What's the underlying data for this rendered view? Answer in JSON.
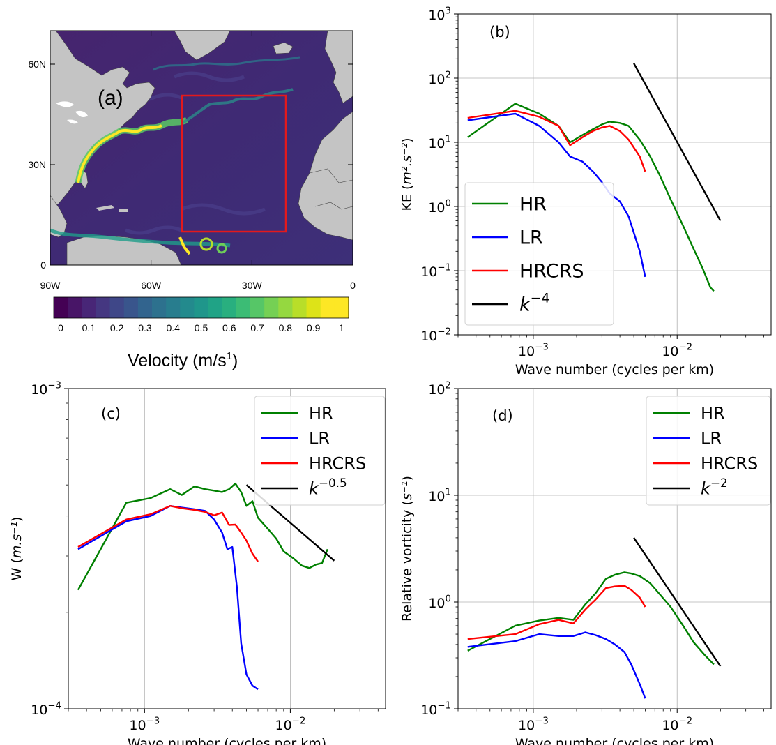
{
  "chart_data": [
    {
      "panel": "(a)",
      "type": "heatmap",
      "lat_ticks": [
        "60N",
        "30N",
        "0"
      ],
      "lon_ticks": [
        "90W",
        "60W",
        "30W",
        "0"
      ],
      "colorbar": {
        "ticks": [
          "0",
          "0.1",
          "0.2",
          "0.3",
          "0.4",
          "0.5",
          "0.6",
          "0.7",
          "0.8",
          "0.9",
          "1"
        ],
        "label_main": "Velocity (m/s",
        "label_sup": "1",
        "label_end": ")",
        "range": [
          0,
          1.05
        ]
      },
      "box_region": {
        "lon": [
          -50,
          -20
        ],
        "lat": [
          10,
          50
        ]
      },
      "colors": {
        "box": "#e3191c",
        "land": "#c4c4c4",
        "ocean_low": "#3e1f6b"
      }
    },
    {
      "panel": "(b)",
      "type": "line",
      "xlabel": "Wave number (cycles per km)",
      "ylabel_main": "KE (",
      "ylabel_tex": "m².s⁻²",
      "ylabel_end": ")",
      "xscale": "log",
      "yscale": "log",
      "xlim": [
        0.0003,
        0.045
      ],
      "ylim": [
        0.01,
        1000
      ],
      "xticks": [
        {
          "v": 0.001,
          "base": "10",
          "exp": "−3"
        },
        {
          "v": 0.01,
          "base": "10",
          "exp": "−2"
        }
      ],
      "yticks": [
        {
          "v": 0.01,
          "base": "10",
          "exp": "−2"
        },
        {
          "v": 0.1,
          "base": "10",
          "exp": "−1"
        },
        {
          "v": 1,
          "base": "10",
          "exp": "0"
        },
        {
          "v": 10,
          "base": "10",
          "exp": "1"
        },
        {
          "v": 100,
          "base": "10",
          "exp": "2"
        },
        {
          "v": 1000,
          "base": "10",
          "exp": "3"
        }
      ],
      "grid": true,
      "legend_position": "bottom-left",
      "series": [
        {
          "name": "HR",
          "color": "#008000",
          "x": [
            0.00035,
            0.00075,
            0.0011,
            0.0015,
            0.0018,
            0.0022,
            0.0026,
            0.003,
            0.0034,
            0.004,
            0.0046,
            0.0055,
            0.0065,
            0.0075,
            0.009,
            0.011,
            0.013,
            0.015,
            0.017,
            0.018
          ],
          "y": [
            12,
            40,
            28,
            18,
            10,
            13,
            16,
            19,
            21,
            20,
            18,
            11,
            6,
            3.2,
            1.3,
            0.5,
            0.22,
            0.11,
            0.055,
            0.048
          ]
        },
        {
          "name": "LR",
          "color": "#0000ff",
          "x": [
            0.00035,
            0.00075,
            0.0011,
            0.0015,
            0.0018,
            0.0022,
            0.0026,
            0.003,
            0.0034,
            0.004,
            0.0046,
            0.0055,
            0.006
          ],
          "y": [
            22,
            28,
            18,
            10,
            6,
            5,
            3.5,
            2.4,
            1.6,
            1.2,
            0.7,
            0.2,
            0.08
          ]
        },
        {
          "name": "HRCRS",
          "color": "#ff0000",
          "x": [
            0.00035,
            0.00075,
            0.0011,
            0.0015,
            0.0018,
            0.0022,
            0.0026,
            0.003,
            0.0034,
            0.004,
            0.0046,
            0.0055,
            0.006
          ],
          "y": [
            24,
            31,
            25,
            18,
            9,
            12,
            15,
            17,
            18,
            15,
            11,
            6,
            3.5
          ]
        },
        {
          "name_base": "k",
          "name_exp": "−4",
          "color": "#000000",
          "x": [
            0.005,
            0.02
          ],
          "y": [
            170,
            0.6
          ]
        }
      ],
      "annotation": "(b)"
    },
    {
      "panel": "(c)",
      "type": "line",
      "xlabel": "Wave number (cycles per km)",
      "ylabel_main": "W (",
      "ylabel_tex": "m.s⁻¹",
      "ylabel_end": ")",
      "xscale": "log",
      "yscale": "log",
      "xlim": [
        0.0003,
        0.045
      ],
      "ylim": [
        0.0001,
        0.001
      ],
      "xticks": [
        {
          "v": 0.001,
          "base": "10",
          "exp": "−3"
        },
        {
          "v": 0.01,
          "base": "10",
          "exp": "−2"
        }
      ],
      "yticks": [
        {
          "v": 0.0001,
          "base": "10",
          "exp": "−4"
        },
        {
          "v": 0.001,
          "base": "10",
          "exp": "−3"
        }
      ],
      "grid": true,
      "legend_position": "top-right",
      "series": [
        {
          "name": "HR",
          "color": "#008000",
          "x": [
            0.00035,
            0.00075,
            0.0011,
            0.0015,
            0.0018,
            0.0022,
            0.0026,
            0.003,
            0.0034,
            0.0038,
            0.0042,
            0.0046,
            0.005,
            0.0055,
            0.006,
            0.007,
            0.008,
            0.009,
            0.0105,
            0.012,
            0.0135,
            0.015,
            0.0165,
            0.018
          ],
          "y": [
            0.000235,
            0.00044,
            0.000455,
            0.000485,
            0.000465,
            0.000495,
            0.000485,
            0.00048,
            0.000475,
            0.000485,
            0.000505,
            0.000475,
            0.00043,
            0.000445,
            0.000395,
            0.000365,
            0.00034,
            0.00031,
            0.000295,
            0.00028,
            0.000275,
            0.000282,
            0.000285,
            0.000315
          ]
        },
        {
          "name": "LR",
          "color": "#0000ff",
          "x": [
            0.00035,
            0.00075,
            0.0011,
            0.0015,
            0.0018,
            0.0022,
            0.0026,
            0.003,
            0.0034,
            0.0037,
            0.004,
            0.0043,
            0.0046,
            0.005,
            0.0055,
            0.006
          ],
          "y": [
            0.000315,
            0.000385,
            0.0004,
            0.00043,
            0.000425,
            0.00042,
            0.000415,
            0.00039,
            0.000355,
            0.000315,
            0.00032,
            0.00024,
            0.00016,
            0.000128,
            0.000118,
            0.000115
          ]
        },
        {
          "name": "HRCRS",
          "color": "#ff0000",
          "x": [
            0.00035,
            0.00075,
            0.0011,
            0.0015,
            0.0018,
            0.0022,
            0.0026,
            0.003,
            0.0034,
            0.0038,
            0.0042,
            0.0046,
            0.005,
            0.0055,
            0.006
          ],
          "y": [
            0.00032,
            0.00039,
            0.000405,
            0.00043,
            0.000423,
            0.000418,
            0.000412,
            0.000402,
            0.00041,
            0.000375,
            0.000376,
            0.000355,
            0.000335,
            0.000305,
            0.000288
          ]
        },
        {
          "name_base": "k",
          "name_exp": "−0.5",
          "color": "#000000",
          "x": [
            0.005,
            0.02
          ],
          "y": [
            0.0005,
            0.00029
          ]
        }
      ],
      "annotation": "(c)"
    },
    {
      "panel": "(d)",
      "type": "line",
      "xlabel": "Wave number (cycles per km)",
      "ylabel_main": "Relative vorticity (",
      "ylabel_tex": "s⁻¹",
      "ylabel_end": ")",
      "xscale": "log",
      "yscale": "log",
      "xlim": [
        0.0003,
        0.045
      ],
      "ylim": [
        0.1,
        100
      ],
      "xticks": [
        {
          "v": 0.001,
          "base": "10",
          "exp": "−3"
        },
        {
          "v": 0.01,
          "base": "10",
          "exp": "−2"
        }
      ],
      "yticks": [
        {
          "v": 0.1,
          "base": "10",
          "exp": "−1"
        },
        {
          "v": 1,
          "base": "10",
          "exp": "0"
        },
        {
          "v": 10,
          "base": "10",
          "exp": "1"
        },
        {
          "v": 100,
          "base": "10",
          "exp": "2"
        }
      ],
      "grid": true,
      "legend_position": "top-right",
      "series": [
        {
          "name": "HR",
          "color": "#008000",
          "x": [
            0.00035,
            0.00075,
            0.0011,
            0.0015,
            0.0019,
            0.0023,
            0.0027,
            0.0032,
            0.0037,
            0.0043,
            0.0048,
            0.0055,
            0.0065,
            0.0075,
            0.009,
            0.011,
            0.013,
            0.0155,
            0.018
          ],
          "y": [
            0.35,
            0.6,
            0.67,
            0.71,
            0.68,
            0.95,
            1.2,
            1.65,
            1.8,
            1.9,
            1.85,
            1.75,
            1.5,
            1.2,
            0.9,
            0.6,
            0.42,
            0.32,
            0.26
          ]
        },
        {
          "name": "LR",
          "color": "#0000ff",
          "x": [
            0.00035,
            0.00075,
            0.0011,
            0.0015,
            0.0019,
            0.0023,
            0.0027,
            0.0032,
            0.0037,
            0.0043,
            0.0048,
            0.0055,
            0.006
          ],
          "y": [
            0.38,
            0.43,
            0.5,
            0.48,
            0.48,
            0.52,
            0.49,
            0.45,
            0.4,
            0.34,
            0.26,
            0.17,
            0.125
          ]
        },
        {
          "name": "HRCRS",
          "color": "#ff0000",
          "x": [
            0.00035,
            0.00075,
            0.0011,
            0.0015,
            0.0019,
            0.0023,
            0.0027,
            0.0032,
            0.0037,
            0.0043,
            0.0048,
            0.0055,
            0.006
          ],
          "y": [
            0.45,
            0.5,
            0.62,
            0.68,
            0.63,
            0.85,
            1.05,
            1.35,
            1.4,
            1.42,
            1.3,
            1.1,
            0.9
          ]
        },
        {
          "name_base": "k",
          "name_exp": "−2",
          "color": "#000000",
          "x": [
            0.005,
            0.02
          ],
          "y": [
            4.0,
            0.25
          ]
        }
      ],
      "annotation": "(d)"
    }
  ]
}
